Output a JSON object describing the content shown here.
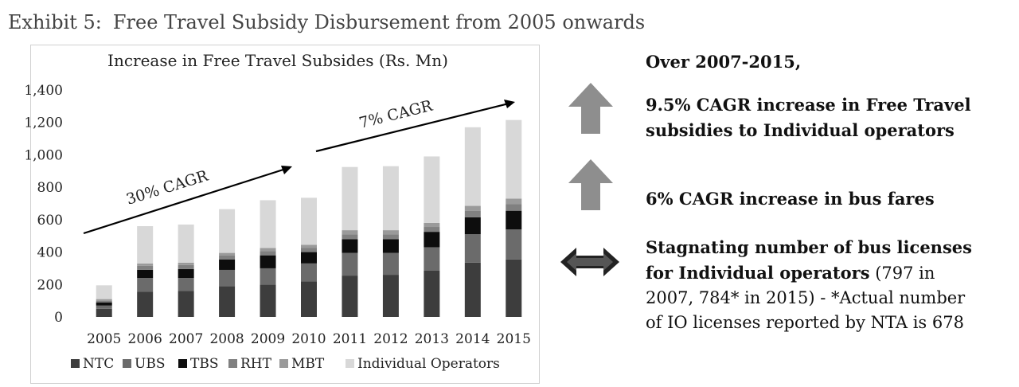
{
  "exhibit": {
    "label": "Exhibit 5:",
    "title": "Free Travel Subsidy Disbursement from 2005 onwards"
  },
  "chart_data": {
    "type": "bar",
    "stacked": true,
    "title": "Increase in Free Travel Subsides (Rs. Mn)",
    "categories": [
      "2005",
      "2006",
      "2007",
      "2008",
      "2009",
      "2010",
      "2011",
      "2012",
      "2013",
      "2014",
      "2015"
    ],
    "ylim": [
      0,
      1400
    ],
    "yticks": [
      0,
      200,
      400,
      600,
      800,
      1000,
      1200,
      1400
    ],
    "ytick_labels": [
      "0",
      "200",
      "400",
      "600",
      "800",
      "1,000",
      "1,200",
      "1,400"
    ],
    "series": [
      {
        "name": "NTC",
        "color": "#3d3d3d",
        "values": [
          50,
          155,
          160,
          190,
          200,
          220,
          255,
          260,
          285,
          335,
          355
        ]
      },
      {
        "name": "UBS",
        "color": "#6b6b6b",
        "values": [
          20,
          85,
          80,
          100,
          100,
          110,
          140,
          135,
          145,
          175,
          185
        ]
      },
      {
        "name": "TBS",
        "color": "#0d0d0d",
        "values": [
          20,
          50,
          55,
          65,
          80,
          70,
          85,
          85,
          95,
          105,
          115
        ]
      },
      {
        "name": "RHT",
        "color": "#808080",
        "values": [
          10,
          25,
          25,
          25,
          25,
          25,
          30,
          30,
          30,
          40,
          40
        ]
      },
      {
        "name": "MBT",
        "color": "#9a9a9a",
        "values": [
          10,
          15,
          15,
          15,
          20,
          20,
          25,
          25,
          25,
          30,
          35
        ]
      },
      {
        "name": "Individual Operators",
        "color": "#d8d8d8",
        "values": [
          85,
          230,
          235,
          270,
          295,
          290,
          390,
          395,
          410,
          485,
          485
        ]
      }
    ],
    "annotations": [
      {
        "text": "30% CAGR"
      },
      {
        "text": "7% CAGR"
      }
    ],
    "legend_position": "bottom"
  },
  "highlights": {
    "heading": "Over 2007-2015,",
    "item1": {
      "line1": "9.5% CAGR increase in Free Travel",
      "line2": "subsidies to Individual operators"
    },
    "item2": {
      "text": "6% CAGR increase in bus fares"
    },
    "item3": {
      "bold1": "Stagnating number of bus licenses",
      "bold2": "for Individual operators",
      "rest2": " (797 in",
      "line3": "2007, 784* in 2015) - *Actual number",
      "line4": "of IO licenses reported by NTA is 678"
    },
    "arrow_color": "#8e8e8e"
  }
}
